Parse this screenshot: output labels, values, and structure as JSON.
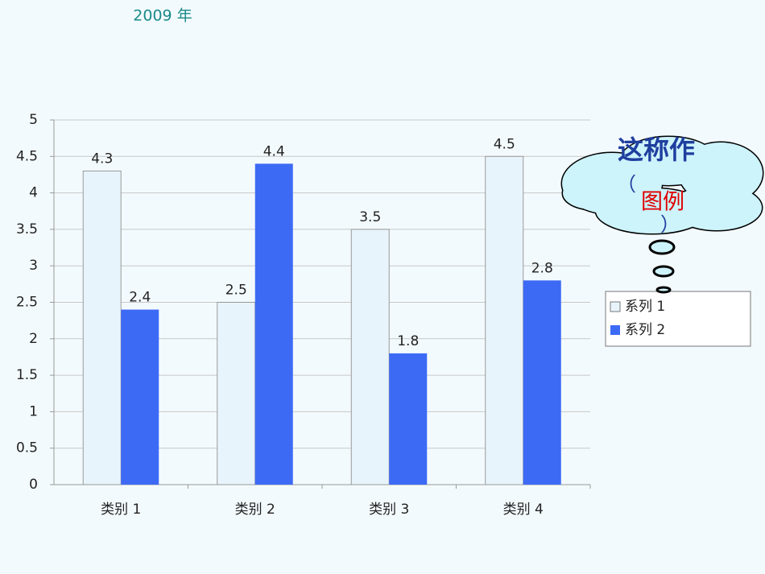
{
  "chart_data": {
    "type": "bar",
    "title": "2009 年",
    "categories": [
      "类别 1",
      "类别 2",
      "类别 3",
      "类别 4"
    ],
    "series": [
      {
        "name": "系列 1",
        "color": "#e8f4fc",
        "values": [
          4.3,
          2.5,
          3.5,
          4.5
        ]
      },
      {
        "name": "系列 2",
        "color": "#3d6af5",
        "values": [
          2.4,
          4.4,
          1.8,
          2.8
        ]
      }
    ],
    "ylim": [
      0,
      5
    ],
    "yticks": [
      0,
      0.5,
      1,
      1.5,
      2,
      2.5,
      3,
      3.5,
      4,
      4.5,
      5
    ],
    "grid": true,
    "legend": "right",
    "annotation": {
      "text": "这称作",
      "open": "（",
      "highlight": "图例",
      "close": "）"
    }
  }
}
